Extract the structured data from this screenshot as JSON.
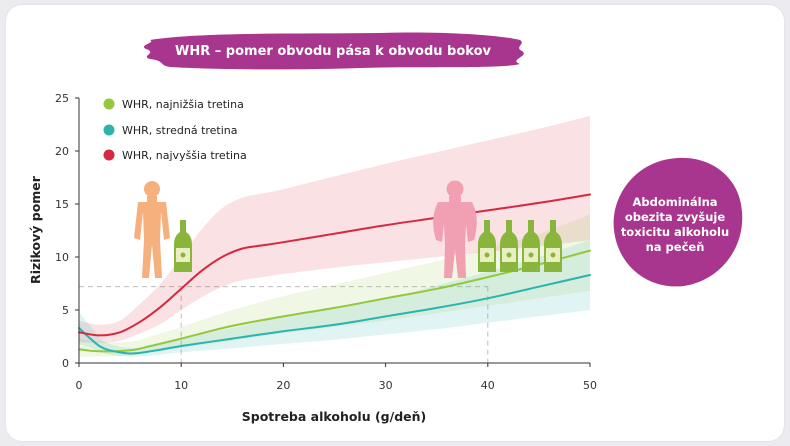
{
  "banner": {
    "title": "WHR – pomer obvodu pása k obvodu bokov"
  },
  "callout": {
    "text": "Abdominálna obezita zvyšuje toxicitu alkoholu na pečeň"
  },
  "colors": {
    "brand": "#a8358e",
    "lowest": "#93c83e",
    "middle": "#2bb3b0",
    "highest": "#d6283f"
  },
  "chart_data": {
    "type": "line",
    "title": "WHR – pomer obvodu pása k obvodu bokov",
    "xlabel": "Spotreba alkoholu (g/deň)",
    "ylabel": "Rizikový pomer",
    "xlim": [
      0,
      50
    ],
    "ylim": [
      0,
      25
    ],
    "xticks": [
      0,
      10,
      20,
      30,
      40,
      50
    ],
    "yticks": [
      0,
      5,
      10,
      15,
      20,
      25
    ],
    "legend_position": "top-left",
    "reference": {
      "y": 7.2,
      "x_from": 10,
      "x_to": 40,
      "style": "dashed"
    },
    "series": [
      {
        "name": "WHR, najnižšia tretina",
        "color": "#93c83e",
        "x": [
          0,
          2,
          5,
          7,
          10,
          15,
          20,
          25,
          30,
          35,
          40,
          45,
          50
        ],
        "y": [
          1.3,
          1.1,
          1.2,
          1.6,
          2.3,
          3.5,
          4.4,
          5.2,
          6.1,
          7.0,
          8.1,
          9.3,
          10.6
        ],
        "ci_low": [
          0.6,
          0.6,
          0.7,
          1.0,
          1.4,
          2.1,
          2.8,
          3.4,
          4.0,
          4.7,
          5.4,
          6.1,
          6.8
        ],
        "ci_high": [
          2.3,
          2.0,
          2.0,
          2.5,
          3.4,
          5.0,
          6.3,
          7.4,
          8.5,
          9.6,
          10.8,
          12.2,
          14.0
        ]
      },
      {
        "name": "WHR, stredná tretina",
        "color": "#2bb3b0",
        "x": [
          0,
          1,
          2,
          3,
          5,
          7,
          10,
          15,
          20,
          25,
          30,
          35,
          40,
          45,
          50
        ],
        "y": [
          3.3,
          2.4,
          1.6,
          1.2,
          0.9,
          1.1,
          1.6,
          2.3,
          3.0,
          3.6,
          4.4,
          5.2,
          6.1,
          7.2,
          8.3
        ],
        "ci_low": [
          1.8,
          1.5,
          1.1,
          0.8,
          0.6,
          0.7,
          1.0,
          1.4,
          1.8,
          2.2,
          2.7,
          3.2,
          3.8,
          4.4,
          5.0
        ],
        "ci_high": [
          4.8,
          3.6,
          2.4,
          1.8,
          1.4,
          1.6,
          2.3,
          3.3,
          4.3,
          5.1,
          6.1,
          7.3,
          8.6,
          10.0,
          11.6
        ]
      },
      {
        "name": "WHR, najvyššia tretina",
        "color": "#d6283f",
        "x": [
          0,
          2,
          4,
          6,
          8,
          10,
          12,
          14,
          16,
          18,
          20,
          25,
          30,
          35,
          40,
          45,
          50
        ],
        "y": [
          2.9,
          2.6,
          2.9,
          3.9,
          5.3,
          7.0,
          8.7,
          10.0,
          10.8,
          11.1,
          11.4,
          12.2,
          13.0,
          13.7,
          14.4,
          15.1,
          15.9
        ],
        "ci_low": [
          2.0,
          1.9,
          2.1,
          2.8,
          3.7,
          5.0,
          6.2,
          7.2,
          7.8,
          8.1,
          8.4,
          9.0,
          9.5,
          10.0,
          10.5,
          11.0,
          11.6
        ],
        "ci_high": [
          4.0,
          3.6,
          4.0,
          5.6,
          7.5,
          10.0,
          12.6,
          14.6,
          15.6,
          16.0,
          16.4,
          17.6,
          18.8,
          19.9,
          21.0,
          22.1,
          23.3
        ]
      }
    ]
  }
}
